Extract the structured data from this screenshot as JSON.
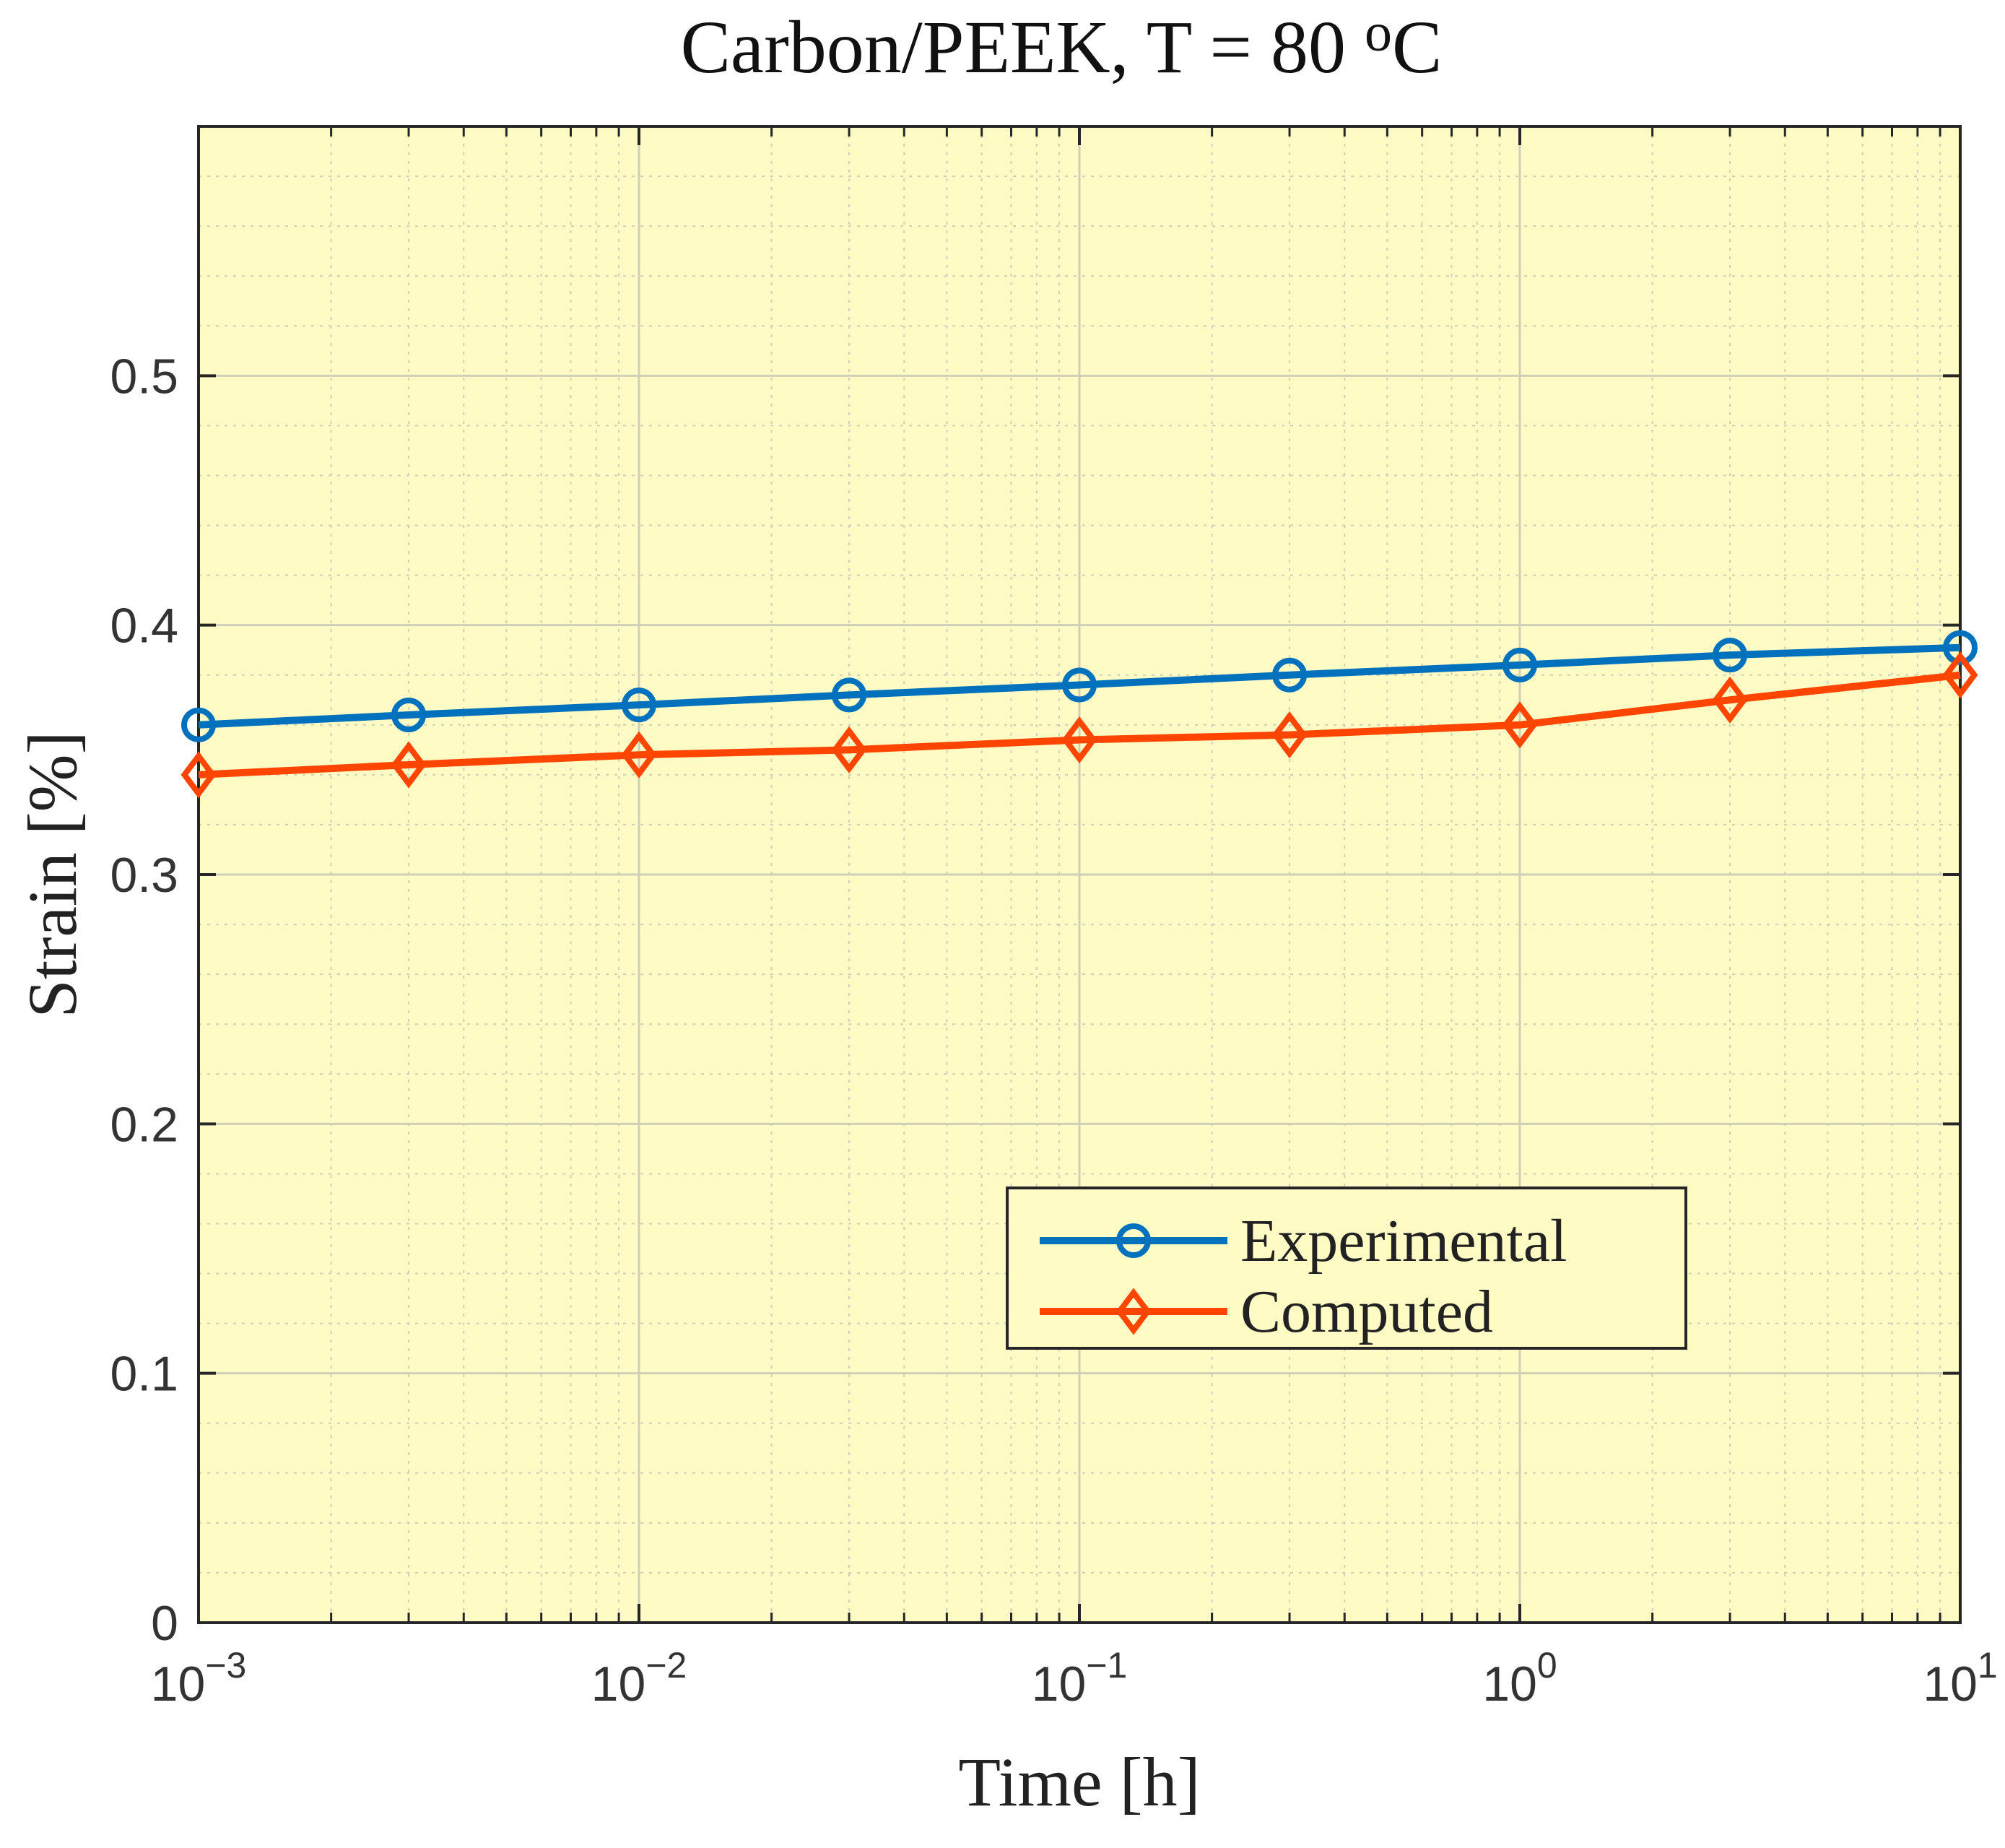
{
  "chart_data": {
    "type": "line",
    "title": {
      "prefix": "Carbon/PEEK, T = 80 ",
      "superscript": "o",
      "suffix": "C"
    },
    "xlabel": "Time [h]",
    "ylabel": "Strain [%]",
    "xscale": "log",
    "xlim": [
      0.001,
      10
    ],
    "ylim": [
      0,
      0.6
    ],
    "grid": true,
    "minor_grid": true,
    "x_ticks": [
      {
        "value": 0.001,
        "base": "10",
        "exp": "−3"
      },
      {
        "value": 0.01,
        "base": "10",
        "exp": "−2"
      },
      {
        "value": 0.1,
        "base": "10",
        "exp": "−1"
      },
      {
        "value": 1,
        "base": "10",
        "exp": "0"
      },
      {
        "value": 10,
        "base": "10",
        "exp": "1"
      }
    ],
    "y_ticks": [
      {
        "value": 0,
        "label": "0"
      },
      {
        "value": 0.1,
        "label": "0.1"
      },
      {
        "value": 0.2,
        "label": "0.2"
      },
      {
        "value": 0.3,
        "label": "0.3"
      },
      {
        "value": 0.4,
        "label": "0.4"
      },
      {
        "value": 0.5,
        "label": "0.5"
      }
    ],
    "x": [
      0.001,
      0.003,
      0.01,
      0.03,
      0.1,
      0.3,
      1,
      3,
      10
    ],
    "series": [
      {
        "name": "Experimental",
        "marker": "circle",
        "color": "#0072BD",
        "values": [
          0.36,
          0.364,
          0.368,
          0.372,
          0.376,
          0.38,
          0.384,
          0.388,
          0.391
        ]
      },
      {
        "name": "Computed",
        "marker": "diamond",
        "color": "#FF4500",
        "values": [
          0.34,
          0.344,
          0.348,
          0.35,
          0.354,
          0.356,
          0.36,
          0.37,
          0.38
        ]
      }
    ],
    "legend_position": "lower-right",
    "colors": {
      "plot_background": "#FFFBC5",
      "grid": "#cfcfb8",
      "axis": "#262626"
    }
  }
}
